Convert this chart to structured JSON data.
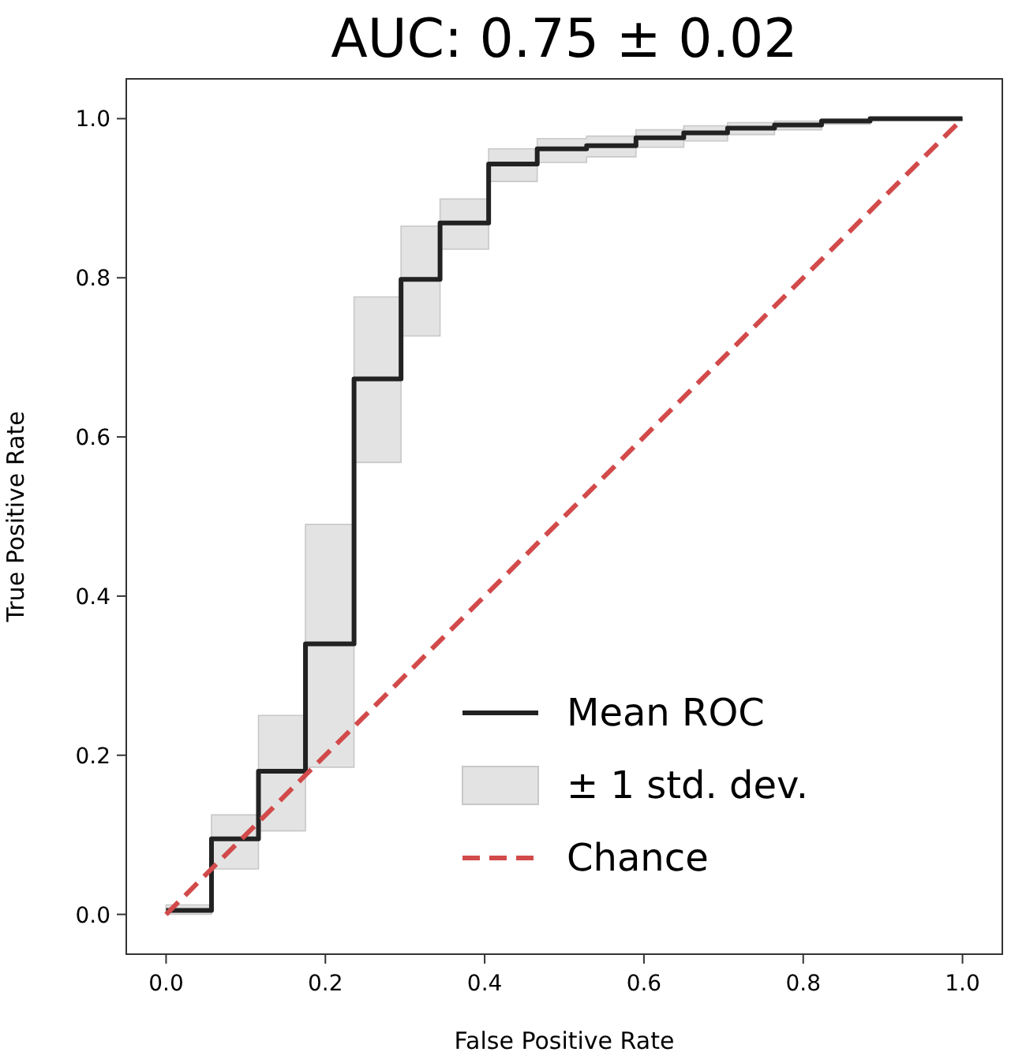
{
  "chart_data": {
    "type": "step",
    "title": "AUC: 0.75 ± 0.02",
    "xlabel": "False Positive Rate",
    "ylabel": "True Positive Rate",
    "xlim": [
      -0.05,
      1.05
    ],
    "ylim": [
      -0.05,
      1.05
    ],
    "xticks": [
      {
        "value": 0,
        "label": "0.0"
      },
      {
        "value": 0.2,
        "label": "0.2"
      },
      {
        "value": 0.4,
        "label": "0.4"
      },
      {
        "value": 0.6,
        "label": "0.6"
      },
      {
        "value": 0.8,
        "label": "0.8"
      },
      {
        "value": 1,
        "label": "1.0"
      }
    ],
    "yticks": [
      {
        "value": 0,
        "label": "0.0"
      },
      {
        "value": 0.2,
        "label": "0.2"
      },
      {
        "value": 0.4,
        "label": "0.4"
      },
      {
        "value": 0.6,
        "label": "0.6"
      },
      {
        "value": 0.8,
        "label": "0.8"
      },
      {
        "value": 1,
        "label": "1.0"
      }
    ],
    "legend": "bottom right",
    "annotations": [
      "± 1 std. dev."
    ],
    "series": [
      {
        "name": "Mean ROC",
        "color": "#222222",
        "line_style": "solid",
        "x": [
          0,
          0.057,
          0.116,
          0.175,
          0.236,
          0.295,
          0.344,
          0.405,
          0.466,
          0.528,
          0.59,
          0.65,
          0.705,
          0.764,
          0.823,
          0.884,
          1.0
        ],
        "values": [
          0.005,
          0.095,
          0.18,
          0.34,
          0.673,
          0.798,
          0.869,
          0.943,
          0.962,
          0.966,
          0.976,
          0.982,
          0.988,
          0.992,
          0.997,
          1.0,
          1.0
        ],
        "lower": [
          0,
          0.057,
          0.105,
          0.185,
          0.568,
          0.727,
          0.836,
          0.921,
          0.945,
          0.952,
          0.964,
          0.972,
          0.98,
          0.986,
          0.993,
          0.998,
          1.0
        ],
        "upper": [
          0.012,
          0.125,
          0.25,
          0.49,
          0.776,
          0.865,
          0.899,
          0.962,
          0.975,
          0.978,
          0.986,
          0.991,
          0.995,
          0.997,
          1.0,
          1.0,
          1.0
        ]
      },
      {
        "type": "line",
        "name": "Chance",
        "color": "#d24a4a",
        "line_style": "dashed",
        "x": [
          0,
          1
        ],
        "values": [
          0,
          1
        ]
      }
    ]
  }
}
